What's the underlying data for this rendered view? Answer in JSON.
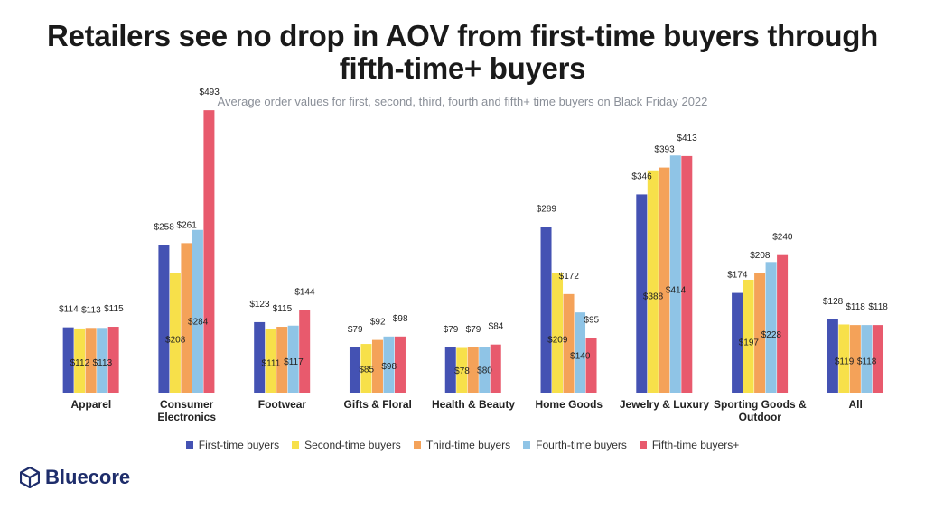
{
  "title_lines": [
    "Retailers see no drop in AOV from first-time buyers through",
    "fifth-time+ buyers"
  ],
  "subtitle": "Average order values for first, second, third, fourth and fifth+ time buyers on Black Friday 2022",
  "brand": {
    "name": "Bluecore",
    "color": "#1e2d6b",
    "icon": "cube-logo-icon"
  },
  "chart_data": {
    "type": "bar",
    "grouped": true,
    "ylim": [
      0,
      520
    ],
    "categories": [
      [
        "Apparel"
      ],
      [
        "Consumer",
        "Electronics"
      ],
      [
        "Footwear"
      ],
      [
        "Gifts & Floral"
      ],
      [
        "Health & Beauty"
      ],
      [
        "Home Goods"
      ],
      [
        "Jewelry & Luxury"
      ],
      [
        "Sporting Goods &",
        "Outdoor"
      ],
      [
        "All"
      ]
    ],
    "series": [
      {
        "name": "First-time buyers",
        "color": "#4452b3",
        "values": [
          114,
          258,
          123,
          79,
          79,
          289,
          346,
          174,
          128
        ]
      },
      {
        "name": "Second-time buyers",
        "color": "#f7e04a",
        "values": [
          112,
          208,
          111,
          85,
          78,
          209,
          388,
          197,
          119
        ]
      },
      {
        "name": "Third-time buyers",
        "color": "#f4a259",
        "values": [
          113,
          261,
          115,
          92,
          79,
          172,
          393,
          208,
          118
        ]
      },
      {
        "name": "Fourth-time buyers",
        "color": "#8fc4e6",
        "values": [
          113,
          284,
          117,
          98,
          80,
          140,
          414,
          228,
          118
        ]
      },
      {
        "name": "Fifth-time buyers+",
        "color": "#e85a6d",
        "values": [
          115,
          493,
          144,
          98,
          84,
          95,
          413,
          240,
          118
        ]
      }
    ],
    "data_labels": [
      {
        "text": "$114",
        "cat": 0,
        "s": 0,
        "pos": "top"
      },
      {
        "text": "$113",
        "cat": 0,
        "s": 2,
        "pos": "top"
      },
      {
        "text": "$115",
        "cat": 0,
        "s": 4,
        "pos": "top"
      },
      {
        "text": "$112",
        "cat": 0,
        "s": 1,
        "pos": "inside"
      },
      {
        "text": "$113",
        "cat": 0,
        "s": 3,
        "pos": "inside"
      },
      {
        "text": "$258",
        "cat": 1,
        "s": 0,
        "pos": "top"
      },
      {
        "text": "$261",
        "cat": 1,
        "s": 2,
        "pos": "top"
      },
      {
        "text": "$493",
        "cat": 1,
        "s": 4,
        "pos": "top"
      },
      {
        "text": "$208",
        "cat": 1,
        "s": 1,
        "pos": "inside"
      },
      {
        "text": "$284",
        "cat": 1,
        "s": 3,
        "pos": "inside"
      },
      {
        "text": "$123",
        "cat": 2,
        "s": 0,
        "pos": "top"
      },
      {
        "text": "$115",
        "cat": 2,
        "s": 2,
        "pos": "top"
      },
      {
        "text": "$144",
        "cat": 2,
        "s": 4,
        "pos": "top"
      },
      {
        "text": "$111",
        "cat": 2,
        "s": 1,
        "pos": "inside"
      },
      {
        "text": "$117",
        "cat": 2,
        "s": 3,
        "pos": "inside"
      },
      {
        "text": "$79",
        "cat": 3,
        "s": 0,
        "pos": "top"
      },
      {
        "text": "$92",
        "cat": 3,
        "s": 2,
        "pos": "top"
      },
      {
        "text": "$98",
        "cat": 3,
        "s": 4,
        "pos": "top"
      },
      {
        "text": "$85",
        "cat": 3,
        "s": 1,
        "pos": "inside"
      },
      {
        "text": "$98",
        "cat": 3,
        "s": 3,
        "pos": "inside"
      },
      {
        "text": "$79",
        "cat": 4,
        "s": 0,
        "pos": "top"
      },
      {
        "text": "$79",
        "cat": 4,
        "s": 2,
        "pos": "top"
      },
      {
        "text": "$84",
        "cat": 4,
        "s": 4,
        "pos": "top"
      },
      {
        "text": "$78",
        "cat": 4,
        "s": 1,
        "pos": "inside"
      },
      {
        "text": "$80",
        "cat": 4,
        "s": 3,
        "pos": "inside"
      },
      {
        "text": "$289",
        "cat": 5,
        "s": 0,
        "pos": "top"
      },
      {
        "text": "$172",
        "cat": 5,
        "s": 2,
        "pos": "top"
      },
      {
        "text": "$95",
        "cat": 5,
        "s": 4,
        "pos": "top"
      },
      {
        "text": "$209",
        "cat": 5,
        "s": 1,
        "pos": "inside"
      },
      {
        "text": "$140",
        "cat": 5,
        "s": 3,
        "pos": "inside"
      },
      {
        "text": "$346",
        "cat": 6,
        "s": 0,
        "pos": "top"
      },
      {
        "text": "$393",
        "cat": 6,
        "s": 2,
        "pos": "top"
      },
      {
        "text": "$413",
        "cat": 6,
        "s": 4,
        "pos": "top"
      },
      {
        "text": "$388",
        "cat": 6,
        "s": 1,
        "pos": "inside"
      },
      {
        "text": "$414",
        "cat": 6,
        "s": 3,
        "pos": "inside"
      },
      {
        "text": "$174",
        "cat": 7,
        "s": 0,
        "pos": "top"
      },
      {
        "text": "$208",
        "cat": 7,
        "s": 2,
        "pos": "top"
      },
      {
        "text": "$240",
        "cat": 7,
        "s": 4,
        "pos": "top"
      },
      {
        "text": "$197",
        "cat": 7,
        "s": 1,
        "pos": "inside"
      },
      {
        "text": "$228",
        "cat": 7,
        "s": 3,
        "pos": "inside"
      },
      {
        "text": "$128",
        "cat": 8,
        "s": 0,
        "pos": "top"
      },
      {
        "text": "$118",
        "cat": 8,
        "s": 2,
        "pos": "top"
      },
      {
        "text": "$118",
        "cat": 8,
        "s": 4,
        "pos": "top"
      },
      {
        "text": "$119",
        "cat": 8,
        "s": 1,
        "pos": "inside"
      },
      {
        "text": "$118",
        "cat": 8,
        "s": 3,
        "pos": "inside"
      }
    ],
    "legend_position": "bottom",
    "grid": false
  }
}
